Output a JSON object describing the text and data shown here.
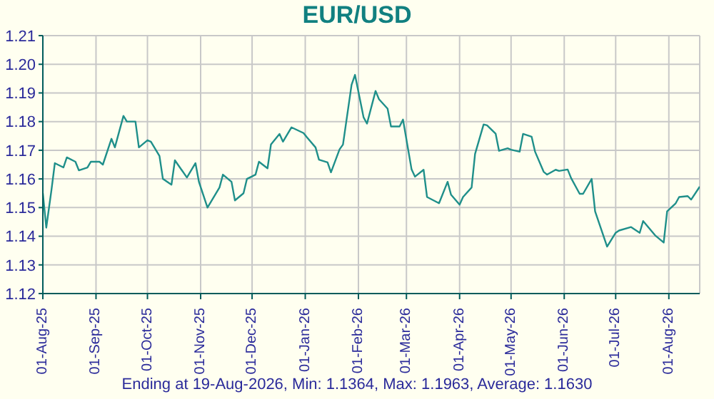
{
  "chart_data": {
    "type": "line",
    "title": "EUR/USD",
    "annotations": [
      "Ending at 19-Aug-2026, Min: 1.1364, Max: 1.1963, Average: 1.1630"
    ],
    "x": [
      "2025-08-01",
      "2025-08-03",
      "2025-08-06",
      "2025-08-08",
      "2025-08-13",
      "2025-08-15",
      "2025-08-20",
      "2025-08-22",
      "2025-08-27",
      "2025-08-29",
      "2025-09-03",
      "2025-09-05",
      "2025-09-10",
      "2025-09-12",
      "2025-09-17",
      "2025-09-19",
      "2025-09-24",
      "2025-09-26",
      "2025-10-01",
      "2025-10-03",
      "2025-10-08",
      "2025-10-10",
      "2025-10-15",
      "2025-10-17",
      "2025-10-24",
      "2025-10-29",
      "2025-10-31",
      "2025-11-05",
      "2025-11-12",
      "2025-11-14",
      "2025-11-19",
      "2025-11-21",
      "2025-11-26",
      "2025-11-28",
      "2025-12-03",
      "2025-12-05",
      "2025-12-10",
      "2025-12-12",
      "2025-12-17",
      "2025-12-19",
      "2025-12-24",
      "2025-12-31",
      "2026-01-02",
      "2026-01-07",
      "2026-01-09",
      "2026-01-14",
      "2026-01-16",
      "2026-01-21",
      "2026-01-23",
      "2026-01-28",
      "2026-01-30",
      "2026-02-04",
      "2026-02-06",
      "2026-02-11",
      "2026-02-13",
      "2026-02-18",
      "2026-02-20",
      "2026-02-25",
      "2026-02-27",
      "2026-03-04",
      "2026-03-06",
      "2026-03-11",
      "2026-03-13",
      "2026-03-20",
      "2026-03-25",
      "2026-03-27",
      "2026-04-01",
      "2026-04-03",
      "2026-04-08",
      "2026-04-10",
      "2026-04-15",
      "2026-04-17",
      "2026-04-22",
      "2026-04-24",
      "2026-04-29",
      "2026-05-01",
      "2026-05-06",
      "2026-05-08",
      "2026-05-13",
      "2026-05-15",
      "2026-05-20",
      "2026-05-22",
      "2026-05-27",
      "2026-05-29",
      "2026-06-03",
      "2026-06-05",
      "2026-06-10",
      "2026-06-12",
      "2026-06-17",
      "2026-06-19",
      "2026-06-26",
      "2026-07-01",
      "2026-07-03",
      "2026-07-10",
      "2026-07-15",
      "2026-07-17",
      "2026-07-24",
      "2026-07-29",
      "2026-07-31",
      "2026-08-05",
      "2026-08-07",
      "2026-08-12",
      "2026-08-14",
      "2026-08-19"
    ],
    "series": [
      {
        "color": "#1f8f8a",
        "values": [
          1.155,
          1.143,
          1.156,
          1.1655,
          1.164,
          1.1675,
          1.166,
          1.163,
          1.164,
          1.166,
          1.166,
          1.165,
          1.174,
          1.171,
          1.182,
          1.18,
          1.18,
          1.171,
          1.1735,
          1.173,
          1.168,
          1.16,
          1.158,
          1.1665,
          1.1605,
          1.1655,
          1.159,
          1.15,
          1.157,
          1.1615,
          1.159,
          1.1525,
          1.155,
          1.16,
          1.1615,
          1.166,
          1.1637,
          1.172,
          1.1757,
          1.173,
          1.178,
          1.176,
          1.1745,
          1.171,
          1.1667,
          1.1658,
          1.1623,
          1.1703,
          1.172,
          1.1928,
          1.1963,
          1.1815,
          1.1793,
          1.1907,
          1.1878,
          1.1845,
          1.1783,
          1.1783,
          1.1807,
          1.1633,
          1.1608,
          1.1632,
          1.1537,
          1.1515,
          1.159,
          1.1545,
          1.151,
          1.1537,
          1.157,
          1.1687,
          1.179,
          1.1787,
          1.1758,
          1.1698,
          1.1707,
          1.1702,
          1.1695,
          1.1757,
          1.1747,
          1.1695,
          1.1625,
          1.1615,
          1.1632,
          1.1628,
          1.1633,
          1.1603,
          1.1548,
          1.1548,
          1.16,
          1.1487,
          1.1364,
          1.1412,
          1.142,
          1.1432,
          1.1412,
          1.1453,
          1.1403,
          1.1378,
          1.1487,
          1.1515,
          1.1537,
          1.154,
          1.1528,
          1.1573
        ]
      }
    ],
    "xlim": [
      "2025-08-01",
      "2026-08-19"
    ],
    "xticks": [
      {
        "value": "2025-08-01",
        "label": "01-Aug-25"
      },
      {
        "value": "2025-09-01",
        "label": "01-Sep-25"
      },
      {
        "value": "2025-10-01",
        "label": "01-Oct-25"
      },
      {
        "value": "2025-11-01",
        "label": "01-Nov-25"
      },
      {
        "value": "2025-12-01",
        "label": "01-Dec-25"
      },
      {
        "value": "2026-01-01",
        "label": "01-Jan-26"
      },
      {
        "value": "2026-02-01",
        "label": "01-Feb-26"
      },
      {
        "value": "2026-03-01",
        "label": "01-Mar-26"
      },
      {
        "value": "2026-04-01",
        "label": "01-Apr-26"
      },
      {
        "value": "2026-05-01",
        "label": "01-May-26"
      },
      {
        "value": "2026-06-01",
        "label": "01-Jun-26"
      },
      {
        "value": "2026-07-01",
        "label": "01-Jul-26"
      },
      {
        "value": "2026-08-01",
        "label": "01-Aug-26"
      }
    ],
    "ylim": [
      1.12,
      1.21
    ],
    "yticks": [
      1.12,
      1.13,
      1.14,
      1.15,
      1.16,
      1.17,
      1.18,
      1.19,
      {
        "value": 1.2,
        "label": "1.20"
      },
      1.21
    ],
    "grid": true,
    "legend": false,
    "marker": "none",
    "line_style": "solid"
  }
}
